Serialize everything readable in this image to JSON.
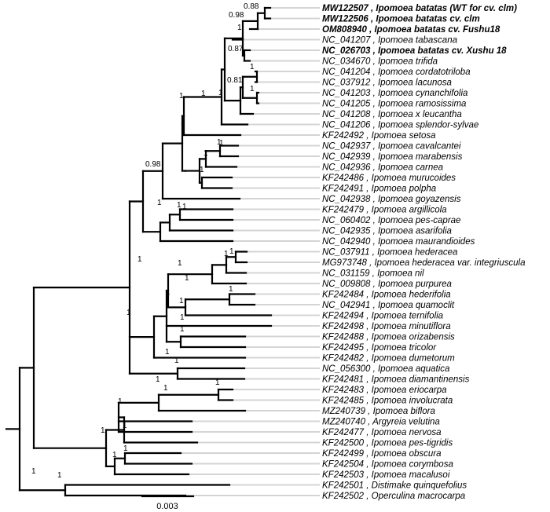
{
  "tree": {
    "tip_labels": [
      {
        "text": "MW122507 ,  Ipomoea batatas (WT for cv. clm)",
        "bold": true
      },
      {
        "text": "MW122506 ,  Ipomoea batatas  cv. clm",
        "bold": true
      },
      {
        "text": "OM808940 ,  Ipomoea batatas  cv. Fushu18",
        "bold": true
      },
      {
        "text": "NC_041207 ,  Ipomoea tabascana",
        "bold": false
      },
      {
        "text": "NC_026703 ,  Ipomoea batatas  cv. Xushu 18",
        "bold": true
      },
      {
        "text": "NC_034670 ,  Ipomoea trifida",
        "bold": false
      },
      {
        "text": "NC_041204 ,  Ipomoea cordatotriloba",
        "bold": false
      },
      {
        "text": "NC_037912 ,  Ipomoea lacunosa",
        "bold": false
      },
      {
        "text": "NC_041203 ,  Ipomoea cynanchifolia",
        "bold": false
      },
      {
        "text": "NC_041205 ,  Ipomoea ramosissima",
        "bold": false
      },
      {
        "text": "NC_041208 ,  Ipomoea x leucantha",
        "bold": false
      },
      {
        "text": "NC_041206 ,  Ipomoea splendor-sylvae",
        "bold": false
      },
      {
        "text": "KF242492 ,  Ipomoea setosa",
        "bold": false
      },
      {
        "text": "NC_042937 ,  Ipomoea cavalcantei",
        "bold": false
      },
      {
        "text": "NC_042939 ,  Ipomoea marabensis",
        "bold": false
      },
      {
        "text": "NC_042936 ,  Ipomoea carnea",
        "bold": false
      },
      {
        "text": "KF242486 ,  Ipomoea murucoides",
        "bold": false
      },
      {
        "text": "KF242491 ,  Ipomoea polpha",
        "bold": false
      },
      {
        "text": "NC_042938 ,  Ipomoea goyazensis",
        "bold": false
      },
      {
        "text": "KF242479 ,  Ipomoea argillicola",
        "bold": false
      },
      {
        "text": "NC_060402 ,  Ipomoea pes-caprae",
        "bold": false
      },
      {
        "text": "NC_042935 ,  Ipomoea asarifolia",
        "bold": false
      },
      {
        "text": "NC_042940 ,  Ipomoea maurandioides",
        "bold": false
      },
      {
        "text": "NC_037911 ,  Ipomoea hederacea",
        "bold": false
      },
      {
        "text": "MG973748 ,  Ipomoea hederacea var. integriuscula",
        "bold": false
      },
      {
        "text": "NC_031159 ,  Ipomoea nil",
        "bold": false
      },
      {
        "text": "NC_009808 ,  Ipomoea purpurea",
        "bold": false
      },
      {
        "text": "KF242484 ,  Ipomoea hederifolia",
        "bold": false
      },
      {
        "text": "NC_042941 ,  Ipomoea quamoclit",
        "bold": false
      },
      {
        "text": "KF242494 ,  Ipomoea ternifolia",
        "bold": false
      },
      {
        "text": "KF242498 ,  Ipomoea minutiflora",
        "bold": false
      },
      {
        "text": "KF242488 ,  Ipomoea orizabensis",
        "bold": false
      },
      {
        "text": "KF242495 ,  Ipomoea tricolor",
        "bold": false
      },
      {
        "text": "KF242482 ,  Ipomoea dumetorum",
        "bold": false
      },
      {
        "text": "NC_056300 ,  Ipomoea aquatica",
        "bold": false
      },
      {
        "text": "KF242481 ,  Ipomoea diamantinensis",
        "bold": false
      },
      {
        "text": "KF242483 ,  Ipomoea eriocarpa",
        "bold": false
      },
      {
        "text": "KF242485 ,  Ipomoea involucrata",
        "bold": false
      },
      {
        "text": "MZ240739 ,  Ipomoea biflora",
        "bold": false
      },
      {
        "text": "MZ240740 ,  Argyreia velutina",
        "bold": false
      },
      {
        "text": "KF242477 ,  Ipomoea nervosa",
        "bold": false
      },
      {
        "text": "KF242500 ,  Ipomoea pes-tigridis",
        "bold": false
      },
      {
        "text": "KF242499 ,  Ipomoea obscura",
        "bold": false
      },
      {
        "text": "KF242504 ,  Ipomoea corymbosa",
        "bold": false
      },
      {
        "text": "KF242503 ,  Ipomoea macalusoi",
        "bold": false
      },
      {
        "text": "KF242501 ,  Distimake quinquefolius",
        "bold": false
      },
      {
        "text": "KF242502 ,  Operculina macrocarpa",
        "bold": false
      }
    ],
    "support_values": [
      "0.88",
      "0.98",
      "0.87",
      "0.81",
      "0.98",
      "1",
      "1",
      "1",
      "1",
      "1",
      "1",
      "1",
      "1",
      "1",
      "1",
      "1",
      "1",
      "1",
      "1",
      "1",
      "1",
      "1",
      "1",
      "1",
      "1",
      "1",
      "1",
      "1",
      "1",
      "1",
      "1",
      "1",
      "1",
      "1",
      "1",
      "1",
      "1",
      "1",
      "1",
      "1",
      "1",
      "1"
    ],
    "scale_bar_label": "0.003"
  }
}
